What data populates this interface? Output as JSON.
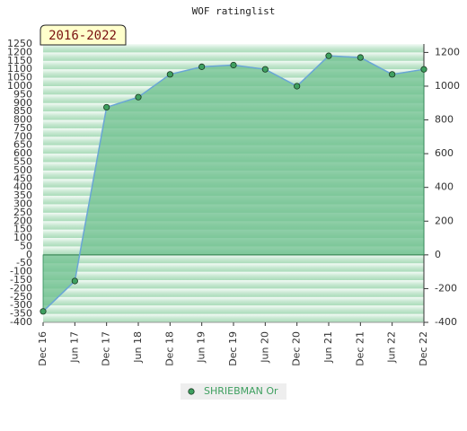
{
  "chart_data": {
    "type": "area",
    "title": "WOF ratinglist",
    "period_label": "2016-2022",
    "categories": [
      "Dec 16",
      "Jun 17",
      "Dec 17",
      "Jun 18",
      "Dec 18",
      "Jun 19",
      "Dec 19",
      "Jun 20",
      "Dec 20",
      "Jun 21",
      "Dec 21",
      "Jun 22",
      "Dec 22"
    ],
    "series": [
      {
        "name": "SHRIEBMAN Or",
        "color": "#6fc08f",
        "line_color": "#6aa6d6",
        "marker_color": "#3fa060",
        "values": [
          -335,
          -155,
          875,
          935,
          1070,
          1115,
          1125,
          1100,
          1000,
          1180,
          1170,
          1070,
          1100
        ]
      }
    ],
    "ylim": [
      -400,
      1250
    ],
    "yticks": [
      -400,
      -350,
      -300,
      -250,
      -200,
      -150,
      -100,
      -50,
      0,
      50,
      100,
      150,
      200,
      250,
      300,
      350,
      400,
      450,
      500,
      550,
      600,
      650,
      700,
      750,
      800,
      850,
      900,
      950,
      1000,
      1050,
      1100,
      1150,
      1200,
      1250
    ],
    "y2lim": [
      -400,
      1250
    ],
    "y2ticks": [
      -400,
      -200,
      0,
      200,
      400,
      600,
      800,
      1000,
      1200
    ],
    "grid": true
  }
}
